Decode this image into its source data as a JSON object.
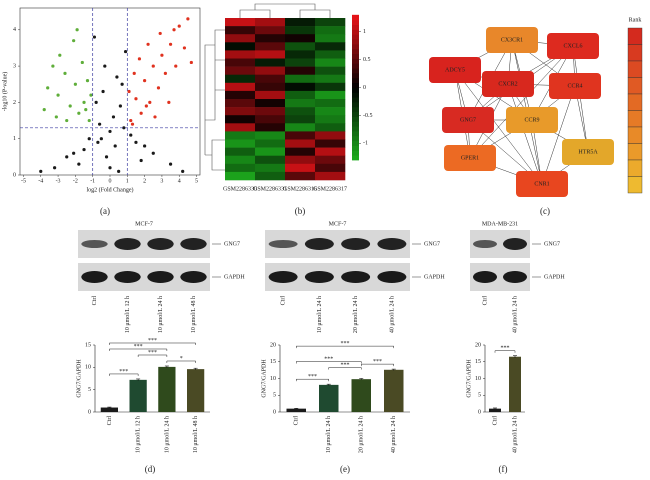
{
  "chart_data": [
    {
      "type": "scatter",
      "x_label": "log2 (Fold Change)",
      "y_label": "-log10 (P-value)",
      "xlim": [
        -5.2,
        5.2
      ],
      "ylim": [
        0,
        4.6
      ],
      "xticks": [
        -5,
        -4,
        -3,
        -2,
        -1,
        0,
        1,
        2,
        3,
        4,
        5
      ],
      "yticks": [
        0,
        1,
        2,
        3,
        4
      ],
      "vlines": [
        -1,
        1
      ],
      "hline": 1.3,
      "line_color": "#3a3aa0",
      "series": [
        {
          "color": "#1a1a1a",
          "x": [
            -0.5,
            0.3,
            0,
            -0.8,
            0.7,
            0.2,
            -0.3,
            1.5,
            -1.5,
            2.5,
            -2.5,
            3.5,
            -3.2,
            0.9,
            -0.9,
            0.5,
            -0.2,
            1.8,
            -1.8,
            0,
            0.6,
            -0.6,
            4.2,
            -4,
            0.4,
            -0.4,
            1.2,
            -1.2,
            2,
            -2.1,
            0.8,
            -0.7
          ],
          "values": [
            1,
            0.8,
            0.2,
            2,
            2.5,
            1.6,
            3,
            0.9,
            0.7,
            0.6,
            0.5,
            0.3,
            0.2,
            3.4,
            3.8,
            0.1,
            0.5,
            0.4,
            0.3,
            1.2,
            1.9,
            1.4,
            0.1,
            0.1,
            2.7,
            2.3,
            1.1,
            1,
            0.8,
            0.6,
            1.3,
            0.9
          ]
        },
        {
          "color": "#5fae3a",
          "x": [
            -1.2,
            -1.5,
            -1.8,
            -2,
            -2.3,
            -2.6,
            -3,
            -3.3,
            -3.6,
            -1.3,
            -1.6,
            -2.1,
            -2.9,
            -3.8,
            -1.1,
            -2.5,
            -1.9,
            -3.1,
            -1.4
          ],
          "values": [
            1.5,
            2,
            1.7,
            2.5,
            1.9,
            2.8,
            2.2,
            3,
            2.4,
            2.6,
            3.1,
            3.7,
            3.3,
            1.8,
            2.2,
            1.5,
            4,
            1.6,
            1.8
          ]
        },
        {
          "color": "#e0321f",
          "x": [
            1.2,
            1.5,
            1.8,
            2,
            2.3,
            2.5,
            2.8,
            3,
            3.2,
            3.5,
            3.8,
            4,
            4.3,
            4.5,
            1.4,
            1.7,
            2.2,
            2.6,
            3.4,
            4.7,
            1.1,
            2.9,
            3.7,
            1.3,
            2.1
          ],
          "values": [
            1.5,
            2.1,
            1.7,
            2.6,
            2,
            3,
            2.4,
            3.3,
            2.8,
            3.6,
            3,
            4.1,
            3.5,
            4.3,
            2.8,
            3.2,
            3.6,
            1.6,
            2,
            3.1,
            2.3,
            3.9,
            4,
            1.4,
            1.9
          ]
        }
      ]
    },
    {
      "type": "heatmap",
      "columns": [
        "GSM2286330",
        "GSM2286331",
        "GSM2286316",
        "GSM2286317"
      ],
      "zlim": [
        -1.3,
        1.3
      ],
      "zticks": [
        1,
        0.5,
        0,
        -0.5,
        -1
      ],
      "values": [
        [
          1.1,
          0.9,
          -0.2,
          -0.5
        ],
        [
          0.3,
          0.6,
          -0.4,
          -0.8
        ],
        [
          0.8,
          0.2,
          0.1,
          -0.9
        ],
        [
          -0.1,
          0.5,
          -0.6,
          -0.3
        ],
        [
          0.9,
          1.0,
          -0.3,
          -0.7
        ],
        [
          0.4,
          -0.2,
          -0.5,
          -1.0
        ],
        [
          0.6,
          0.8,
          0.2,
          -0.6
        ],
        [
          -0.3,
          0.4,
          -0.8,
          -0.9
        ],
        [
          1.0,
          0.3,
          -0.1,
          -0.4
        ],
        [
          0.2,
          0.9,
          -0.7,
          -1.1
        ],
        [
          0.5,
          0.1,
          -0.9,
          -0.8
        ],
        [
          0.7,
          0.6,
          -0.6,
          -1.0
        ],
        [
          0.1,
          0.4,
          -0.5,
          -0.9
        ],
        [
          0.9,
          0.2,
          -1.0,
          -0.7
        ],
        [
          -0.9,
          -1.0,
          0.4,
          0.8
        ],
        [
          -1.1,
          -0.8,
          0.9,
          0.3
        ],
        [
          -0.7,
          -1.1,
          0.2,
          1.0
        ],
        [
          -1.0,
          -0.6,
          0.8,
          0.6
        ],
        [
          -0.8,
          -0.9,
          1.1,
          0.4
        ],
        [
          -1.2,
          -0.7,
          0.5,
          0.9
        ]
      ]
    },
    {
      "type": "bar",
      "y_label": "GNG7/GAPDH",
      "categories": [
        "Ctrl",
        "10 μmol/L 12 h",
        "10 μmol/L 24 h",
        "10 μmol/L 48 h"
      ],
      "values": [
        1,
        7.2,
        10.1,
        9.6
      ],
      "errors": [
        0.1,
        0.2,
        0.2,
        0.2
      ],
      "colors": [
        "#1a1a1a",
        "#1f4a30",
        "#2f4a1c",
        "#4a4a24"
      ],
      "ylim": [
        0,
        15
      ],
      "yticks": [
        0,
        5,
        10,
        15
      ],
      "annotations": [
        "***",
        "***",
        "***",
        "***",
        "*"
      ]
    },
    {
      "type": "bar",
      "y_label": "GNG7/GAPDH",
      "categories": [
        "Ctrl",
        "10 μmol/L 24 h",
        "20 μmol/L 24 h",
        "40 μmol/L 24 h"
      ],
      "values": [
        1,
        8.1,
        9.8,
        12.6
      ],
      "errors": [
        0.1,
        0.2,
        0.2,
        0.2
      ],
      "colors": [
        "#1a1a1a",
        "#1f4a30",
        "#2f4a1c",
        "#4a4a24"
      ],
      "ylim": [
        0,
        20
      ],
      "yticks": [
        0,
        5,
        10,
        15,
        20
      ],
      "annotations": [
        "***",
        "***",
        "***",
        "***",
        "***"
      ]
    },
    {
      "type": "bar",
      "y_label": "GNG7/GAPDH",
      "categories": [
        "Ctrl",
        "40 μmol/L 24 h"
      ],
      "values": [
        1,
        16.5
      ],
      "errors": [
        0.2,
        0.3
      ],
      "colors": [
        "#1a1a1a",
        "#4a4a24"
      ],
      "ylim": [
        0,
        20
      ],
      "yticks": [
        0,
        5,
        10,
        15,
        20
      ],
      "annotations": [
        "***"
      ]
    }
  ],
  "network": {
    "legend_title": "Rank",
    "rank_colors": [
      "#d42a1e",
      "#d83a20",
      "#dc4a22",
      "#e05a24",
      "#e36a24",
      "#e67a26",
      "#e88a28",
      "#ea9a2a",
      "#ecaa2c",
      "#eeba30"
    ],
    "nodes": [
      {
        "label": "CX3CR1",
        "color": "#e8872a"
      },
      {
        "label": "CXCL6",
        "color": "#dd2a1f"
      },
      {
        "label": "ADCY5",
        "color": "#d8231e"
      },
      {
        "label": "CXCR2",
        "color": "#d8281e"
      },
      {
        "label": "CCR4",
        "color": "#e0341f"
      },
      {
        "label": "GNG7",
        "color": "#d82a22"
      },
      {
        "label": "CCR9",
        "color": "#e89a2a"
      },
      {
        "label": "GPER1",
        "color": "#ec6a23"
      },
      {
        "label": "HTR5A",
        "color": "#e3a72a"
      },
      {
        "label": "CNR1",
        "color": "#e8461f"
      }
    ]
  },
  "blots": [
    {
      "title": "MCF-7",
      "proteins": [
        "GNG7",
        "GAPDH"
      ],
      "lanes": [
        "Ctrl",
        "10 μmol/L 12 h",
        "10 μmol/L 24 h",
        "10 μmol/L 48 h"
      ]
    },
    {
      "title": "MCF-7",
      "proteins": [
        "GNG7",
        "GAPDH"
      ],
      "lanes": [
        "Ctrl",
        "10 μmol/L 24 h",
        "20 μmol/L 24 h",
        "40 μmol/L 24 h"
      ]
    },
    {
      "title": "MDA-MB-231",
      "proteins": [
        "GNG7",
        "GAPDH"
      ],
      "lanes": [
        "Ctrl",
        "40 μmol/L 24 h"
      ]
    }
  ],
  "panel_labels": [
    "(a)",
    "(b)",
    "(c)",
    "(d)",
    "(e)",
    "(f)"
  ]
}
